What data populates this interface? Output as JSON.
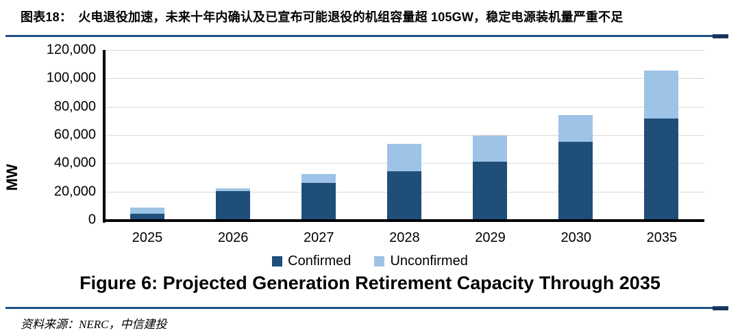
{
  "header": {
    "title": "图表18：　火电退役加速，未来十年内确认及已宣布可能退役的机组容量超 105GW，稳定电源装机量严重不足"
  },
  "chart_data": {
    "type": "bar",
    "stacked": true,
    "title": "Figure 6: Projected Generation Retirement Capacity Through 2035",
    "categories": [
      "2025",
      "2026",
      "2027",
      "2028",
      "2029",
      "2030",
      "2035"
    ],
    "series": [
      {
        "name": "Confirmed",
        "color": "#1F4E79",
        "values": [
          4300,
          20500,
          26000,
          34500,
          41000,
          55000,
          71500
        ]
      },
      {
        "name": "Unconfirmed",
        "color": "#9DC3E6",
        "values": [
          4200,
          2000,
          6500,
          19000,
          18500,
          19000,
          34000
        ]
      }
    ],
    "totals": [
      8500,
      22500,
      32500,
      53500,
      59500,
      74000,
      105500
    ],
    "xlabel": "",
    "ylabel": "MW",
    "ylim": [
      0,
      120000
    ],
    "ytick_step": 20000,
    "yticks": [
      "0",
      "20,000",
      "40,000",
      "60,000",
      "80,000",
      "100,000",
      "120,000"
    ],
    "grid": true,
    "legend_position": "bottom"
  },
  "legend": {
    "items": [
      {
        "label": "Confirmed",
        "color": "#1F4E79"
      },
      {
        "label": "Unconfirmed",
        "color": "#9DC3E6"
      }
    ]
  },
  "caption": "Figure 6: Projected Generation Retirement Capacity Through 2035",
  "source": "资料来源：NERC，中信建投",
  "colors": {
    "rule_line": "#1B5085",
    "rule_cap": "#16365C",
    "gridline": "#D9D9D9",
    "axis": "#000000",
    "bar_confirmed": "#1F4E79",
    "bar_unconfirmed": "#9DC3E6",
    "background": "#FFFFFF",
    "text": "#000000"
  }
}
